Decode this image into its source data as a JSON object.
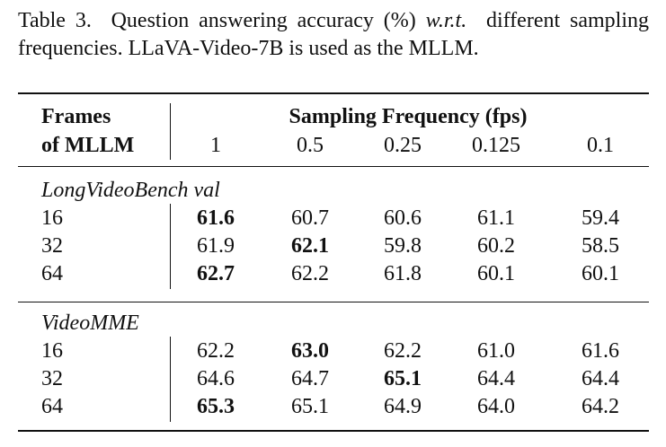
{
  "caption": {
    "label": "Table 3.",
    "text": "Question answering accuracy (%)",
    "emphasis": "w.r.t.",
    "text_end": "different sampling frequencies. LLaVA-Video-7B is used as the MLLM."
  },
  "table": {
    "header": {
      "row_label": [
        "Frames",
        "of MLLM"
      ],
      "group": "Sampling Frequency (fps)",
      "columns": [
        "1",
        "0.5",
        "0.25",
        "0.125",
        "0.1"
      ]
    },
    "sections": [
      {
        "name": "LongVideoBench val",
        "rows": [
          {
            "label": "16",
            "values": [
              "61.6",
              "60.7",
              "60.6",
              "61.1",
              "59.4"
            ],
            "bold": 0
          },
          {
            "label": "32",
            "values": [
              "61.9",
              "62.1",
              "59.8",
              "60.2",
              "58.5"
            ],
            "bold": 1
          },
          {
            "label": "64",
            "values": [
              "62.7",
              "62.2",
              "61.8",
              "60.1",
              "60.1"
            ],
            "bold": 0
          }
        ]
      },
      {
        "name": "VideoMME",
        "rows": [
          {
            "label": "16",
            "values": [
              "62.2",
              "63.0",
              "62.2",
              "61.0",
              "61.6"
            ],
            "bold": 1
          },
          {
            "label": "32",
            "values": [
              "64.6",
              "64.7",
              "65.1",
              "64.4",
              "64.4"
            ],
            "bold": 2
          },
          {
            "label": "64",
            "values": [
              "65.3",
              "65.1",
              "64.9",
              "64.0",
              "64.2"
            ],
            "bold": 0
          }
        ]
      }
    ]
  }
}
